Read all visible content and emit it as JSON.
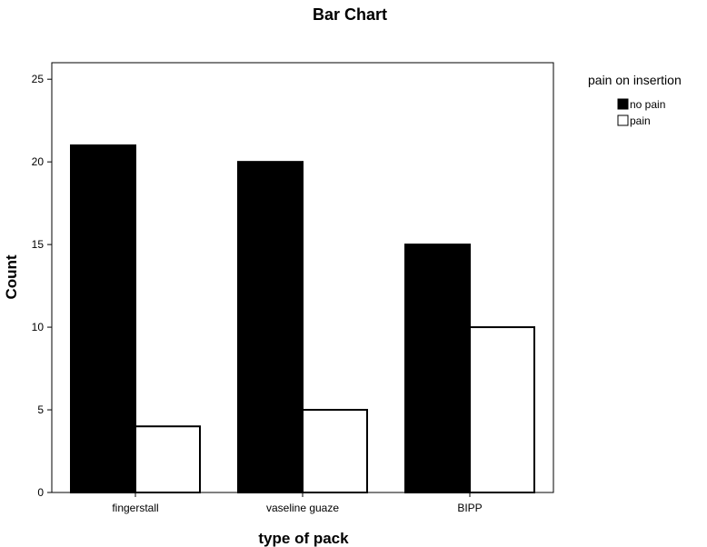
{
  "chart_data": {
    "type": "bar",
    "title": "Bar Chart",
    "xlabel": "type of pack",
    "ylabel": "Count",
    "categories": [
      "fingerstall",
      "vaseline guaze",
      "BIPP"
    ],
    "series": [
      {
        "name": "no pain",
        "values": [
          21,
          20,
          15
        ],
        "color": "#000000"
      },
      {
        "name": "pain",
        "values": [
          4,
          5,
          10
        ],
        "color": "#ffffff"
      }
    ],
    "ylim": [
      0,
      26
    ],
    "yticks": [
      0,
      5,
      10,
      15,
      20,
      25
    ],
    "grid": false,
    "legend": {
      "title": "pain on insertion",
      "placement": "right"
    }
  }
}
